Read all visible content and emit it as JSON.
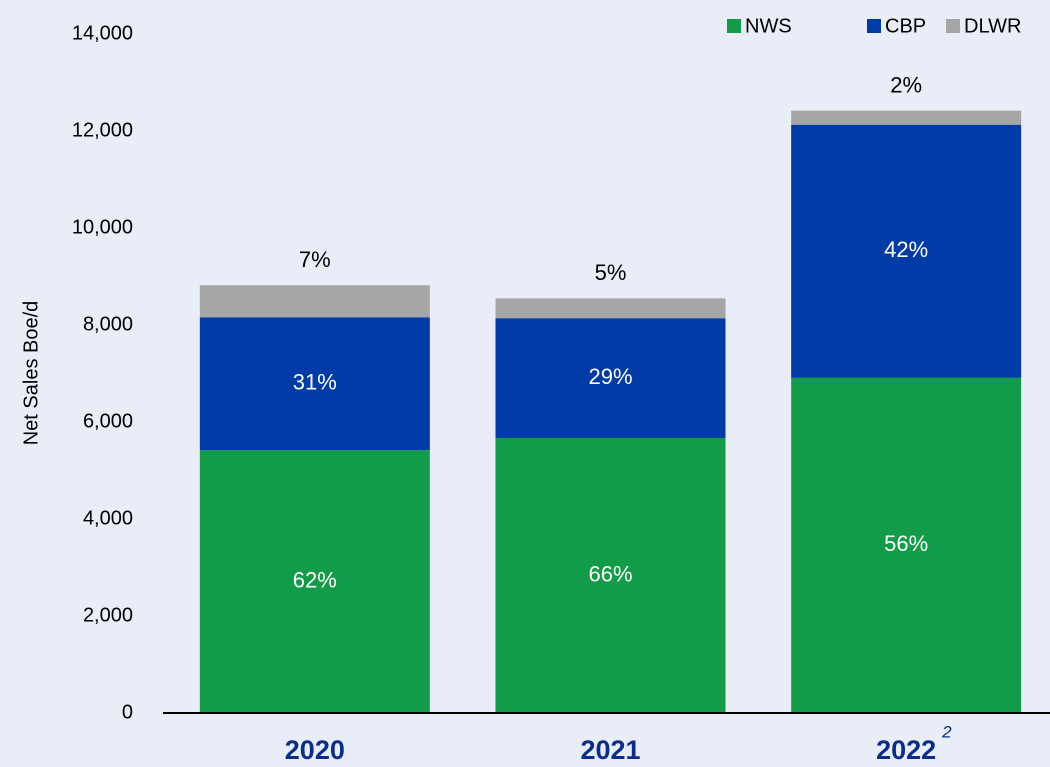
{
  "chart_data": {
    "type": "stacked_bar",
    "y_label": "Net Sales Boe/d",
    "categories": [
      "2020",
      "2021",
      "2022"
    ],
    "series": [
      {
        "name": "NWS",
        "color": "#129c48",
        "values": [
          5420,
          5670,
          6910
        ],
        "labels": [
          "62%",
          "66%",
          "56%"
        ]
      },
      {
        "name": "CBP",
        "color": "#003ba8",
        "values": [
          2740,
          2470,
          5220
        ],
        "labels": [
          "31%",
          "29%",
          "42%"
        ]
      },
      {
        "name": "DLWR",
        "color": "#a6a6a6",
        "values": [
          660,
          410,
          290
        ],
        "labels": [
          "7%",
          "5%",
          "2%"
        ]
      }
    ],
    "footnote_mark": "2",
    "ylim": [
      0,
      14000
    ],
    "yticks": [
      0,
      {
        "value": 2000,
        "label": "2,000"
      },
      {
        "value": 4000,
        "label": "4,000"
      },
      {
        "value": 6000,
        "label": "6,000"
      },
      {
        "value": 8000,
        "label": "8,000"
      },
      {
        "value": 10000,
        "label": "10,000"
      },
      {
        "value": 12000,
        "label": "12,000"
      },
      {
        "value": 14000,
        "label": "14,000"
      }
    ],
    "legend": "top-right"
  }
}
